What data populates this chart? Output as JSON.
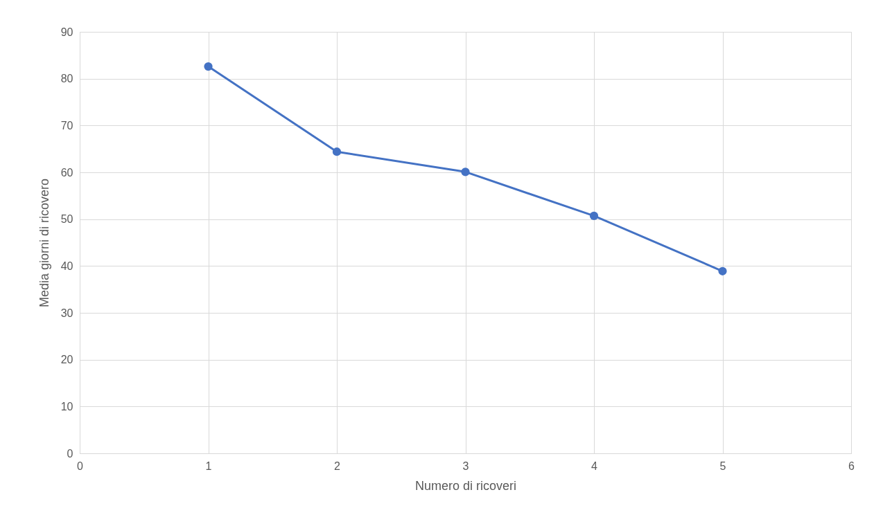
{
  "chart_data": {
    "type": "line",
    "xlabel": "Numero di ricoveri",
    "ylabel": "Media giorni di ricovero",
    "x": [
      1,
      2,
      3,
      4,
      5
    ],
    "series": [
      {
        "color": "#4472c4",
        "values": [
          82.6,
          64.4,
          60.1,
          50.7,
          38.9
        ]
      }
    ],
    "xlim": [
      0,
      6
    ],
    "xticks": [
      0,
      1,
      2,
      3,
      4,
      5,
      6
    ],
    "ylim": [
      0,
      90
    ],
    "yticks": [
      0,
      10,
      20,
      30,
      40,
      50,
      60,
      70,
      80,
      90
    ],
    "grid": true,
    "marker": "circle",
    "line_style": "solid"
  }
}
